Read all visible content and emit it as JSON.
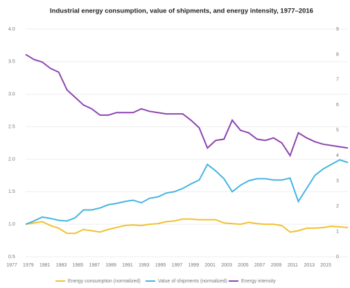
{
  "chart_data": {
    "type": "line",
    "title": "Industrial energy consumption, value of shipments, and energy intensity, 1977–2016",
    "x": [
      1977,
      1978,
      1979,
      1980,
      1981,
      1982,
      1983,
      1984,
      1985,
      1986,
      1987,
      1988,
      1989,
      1990,
      1991,
      1992,
      1993,
      1994,
      1995,
      1996,
      1997,
      1998,
      1999,
      2000,
      2001,
      2002,
      2003,
      2004,
      2005,
      2006,
      2007,
      2008,
      2009,
      2010,
      2011,
      2012,
      2013,
      2014,
      2015,
      2016
    ],
    "xlim": [
      1977,
      2016
    ],
    "xticks": [
      1977,
      1979,
      1981,
      1983,
      1985,
      1987,
      1989,
      1991,
      1993,
      1995,
      1997,
      1999,
      2001,
      2003,
      2005,
      2007,
      2009,
      2011,
      2013,
      2015
    ],
    "ylim": [
      0.5,
      4.0
    ],
    "yticks": [
      0.5,
      {
        "value": 1.0,
        "label": "1.0"
      },
      1.5,
      {
        "value": 2.0,
        "label": "2.0"
      },
      2.5,
      {
        "value": 3.0,
        "label": "3.0"
      },
      3.5,
      {
        "value": 4.0,
        "label": "4.0"
      }
    ],
    "y2lim": [
      0,
      9
    ],
    "y2ticks": [
      0,
      1,
      2,
      3,
      4,
      5,
      6,
      7,
      8,
      9
    ],
    "grid": true,
    "legend": "bottom",
    "series": [
      {
        "name": "Energy consumption (normalized)",
        "color": "#f2c12e",
        "values": [
          1.0,
          1.02,
          1.04,
          0.98,
          0.94,
          0.86,
          0.86,
          0.92,
          0.9,
          0.88,
          0.92,
          0.95,
          0.98,
          0.99,
          0.98,
          1.0,
          1.01,
          1.04,
          1.05,
          1.08,
          1.08,
          1.07,
          1.07,
          1.07,
          1.02,
          1.01,
          1.0,
          1.03,
          1.01,
          1.0,
          1.0,
          0.98,
          0.88,
          0.9,
          0.94,
          0.94,
          0.95,
          0.97,
          0.96,
          0.95
        ]
      },
      {
        "name": "Value of shipments (normalized)",
        "color": "#45b5e0",
        "values": [
          1.0,
          1.05,
          1.11,
          1.09,
          1.06,
          1.05,
          1.1,
          1.22,
          1.22,
          1.25,
          1.3,
          1.32,
          1.35,
          1.37,
          1.33,
          1.4,
          1.42,
          1.48,
          1.5,
          1.55,
          1.62,
          1.68,
          1.92,
          1.82,
          1.7,
          1.5,
          1.6,
          1.67,
          1.7,
          1.7,
          1.68,
          1.68,
          1.71,
          1.35,
          1.55,
          1.75,
          1.85,
          1.92,
          1.99,
          1.95
        ]
      },
      {
        "name": "Energy intensity",
        "color": "#8e44b0",
        "axis": "y2",
        "values": [
          8.0,
          7.8,
          7.7,
          7.45,
          7.3,
          6.6,
          6.3,
          6.0,
          5.85,
          5.6,
          5.6,
          5.7,
          5.7,
          5.7,
          5.85,
          5.75,
          5.7,
          5.65,
          5.65,
          5.65,
          5.4,
          5.1,
          4.3,
          4.6,
          4.65,
          5.4,
          5.0,
          4.9,
          4.65,
          4.6,
          4.7,
          4.5,
          4.0,
          4.9,
          4.7,
          4.55,
          4.45,
          4.4,
          4.35,
          4.3
        ]
      }
    ]
  }
}
